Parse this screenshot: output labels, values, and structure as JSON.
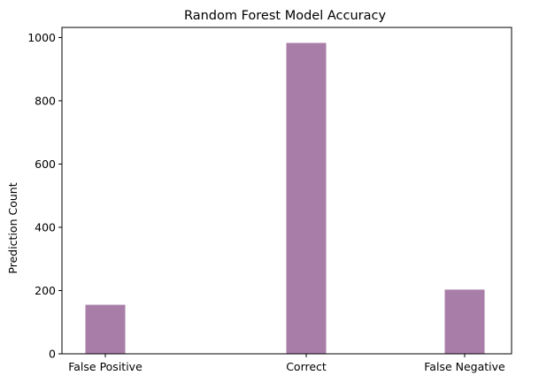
{
  "chart_data": {
    "type": "bar",
    "title": "Random Forest Model Accuracy",
    "xlabel": "",
    "ylabel": "Prediction Count",
    "categories": [
      "False Positive",
      "Correct",
      "False Negative"
    ],
    "values": [
      155,
      983,
      203
    ],
    "ylim": [
      0,
      1032
    ],
    "yticks": [
      "0",
      "200",
      "400",
      "600",
      "800",
      "1000"
    ],
    "grid": false,
    "legend": "none",
    "bar_color": "#a87ea8",
    "axis_color": "#000000"
  }
}
